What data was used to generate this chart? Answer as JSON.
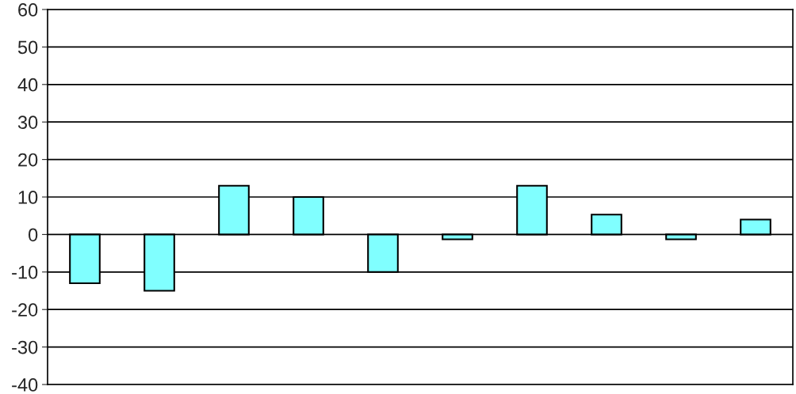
{
  "chart_data": {
    "type": "bar",
    "categories": [
      null,
      null,
      null,
      null,
      null,
      null,
      null,
      null,
      null,
      null
    ],
    "values": [
      -13,
      -15,
      13,
      10,
      -10,
      -1.3,
      13,
      5.3,
      -1.3,
      4
    ],
    "color": "#80ffff",
    "ylim": [
      -40,
      60
    ],
    "yticks": [
      -40,
      -30,
      -20,
      -10,
      0,
      10,
      20,
      30,
      40,
      50,
      60
    ],
    "grid": "y"
  }
}
